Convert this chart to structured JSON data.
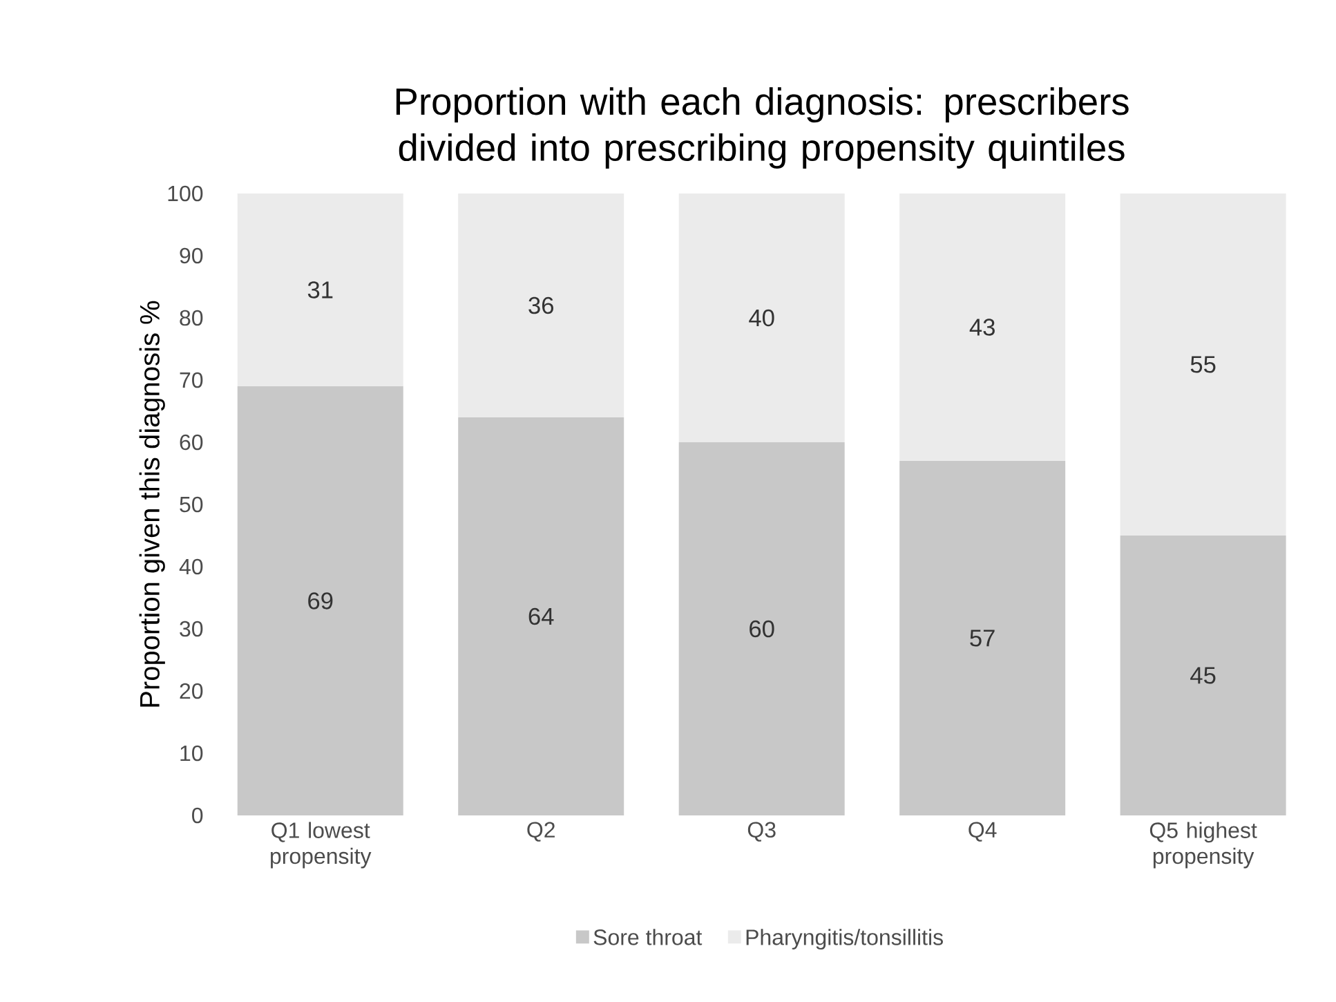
{
  "chart_data": {
    "type": "bar",
    "stacked": true,
    "title": "Proportion with each diagnosis: prescribers divided into prescribing propensity quintiles",
    "ylabel": "Proportion given this diagnosis %",
    "categories": [
      "Q1 lowest propensity",
      "Q2",
      "Q3",
      "Q4",
      "Q5 highest propensity"
    ],
    "series": [
      {
        "name": "Sore throat",
        "color": "#c8c8c8",
        "values": [
          69,
          64,
          60,
          57,
          45
        ]
      },
      {
        "name": "Pharyngitis/tonsillitis",
        "color": "#ebebeb",
        "values": [
          31,
          36,
          40,
          43,
          55
        ]
      }
    ],
    "ylim": [
      0,
      100
    ],
    "yticks": [
      0,
      10,
      20,
      30,
      40,
      50,
      60,
      70,
      80,
      90,
      100
    ],
    "grid": false,
    "legend": "bottom",
    "data_labels": true
  }
}
